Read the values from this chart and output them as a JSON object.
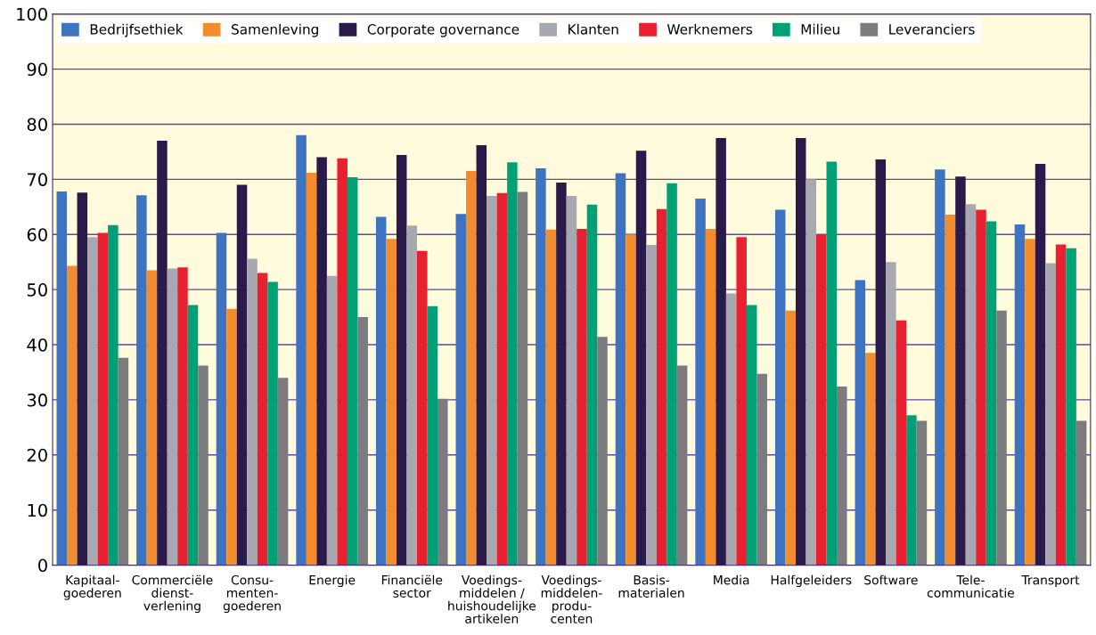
{
  "chart_data": {
    "type": "bar",
    "categories": [
      "Kapitaal-\ngoederen",
      "Commerciële\ndienst-\nverlening",
      "Consu-\nmenten-\ngoederen",
      "Energie",
      "Financiële\nsector",
      "Voedings-\nmiddelen /\nhuishoudelijke\nartikelen",
      "Voedings-\nmiddelen-\nprodu-\ncenten",
      "Basis-\nmaterialen",
      "Media",
      "Halfgeleiders",
      "Software",
      "Tele-\ncommunicatie",
      "Transport"
    ],
    "series": [
      {
        "name": "Bedrijfsethiek",
        "color": "#3d73c0",
        "values": [
          67.8,
          67.1,
          60.3,
          78,
          63.2,
          63.7,
          72,
          71.1,
          66.5,
          64.5,
          51.7,
          71.8,
          61.8
        ]
      },
      {
        "name": "Samenleving",
        "color": "#f28c2c",
        "values": [
          54.3,
          53.5,
          46.5,
          71.2,
          59.2,
          71.5,
          60.9,
          60,
          61,
          46.2,
          38.5,
          63.6,
          59.2
        ]
      },
      {
        "name": "Corporate governance",
        "color": "#2a1a4a",
        "values": [
          67.6,
          77,
          69,
          74,
          74.4,
          76.2,
          69.4,
          75.2,
          77.5,
          77.5,
          73.6,
          70.5,
          72.8
        ]
      },
      {
        "name": "Klanten",
        "color": "#a8a8b0",
        "values": [
          59.5,
          53.8,
          55.6,
          52.5,
          61.6,
          67,
          67,
          58.1,
          49.3,
          70,
          55,
          65.5,
          54.8
        ]
      },
      {
        "name": "Werknemers",
        "color": "#e8202f",
        "values": [
          60.3,
          54,
          53,
          73.8,
          57,
          67.5,
          61,
          64.6,
          59.5,
          60,
          44.4,
          64.5,
          58.2
        ]
      },
      {
        "name": "Milieu",
        "color": "#00a076",
        "values": [
          61.7,
          47.2,
          51.4,
          70.4,
          47,
          73.1,
          65.4,
          69.3,
          47.2,
          73.2,
          27.2,
          62.4,
          57.5
        ]
      },
      {
        "name": "Leveranciers",
        "color": "#7c7c80",
        "values": [
          37.6,
          36.2,
          34,
          45,
          30.2,
          67.7,
          41.4,
          36.2,
          34.7,
          32.4,
          26.2,
          46.2,
          26.2
        ]
      }
    ],
    "ylim": [
      0,
      100
    ],
    "yticks": [
      0,
      10,
      20,
      30,
      40,
      50,
      60,
      70,
      80,
      90,
      100
    ],
    "grid": "y",
    "legend": "top left"
  }
}
